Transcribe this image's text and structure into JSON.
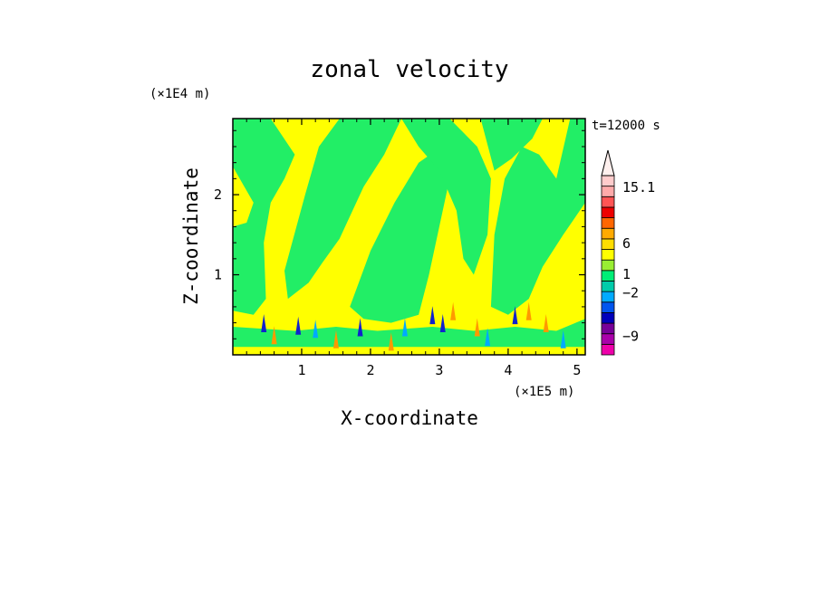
{
  "chart_data": {
    "type": "heatmap",
    "title": "zonal velocity",
    "time_label": "t=12000 s",
    "xlabel": "X-coordinate",
    "ylabel": "Z-coordinate",
    "x_scale_label": "(×1E5 m)",
    "y_scale_label": "(×1E4 m)",
    "xlim": [
      0,
      5.12
    ],
    "ylim": [
      0,
      2.95
    ],
    "x_ticks": [
      1,
      2,
      3,
      4,
      5
    ],
    "y_ticks": [
      1,
      2
    ],
    "colorbar": {
      "labels": [
        {
          "text": "15.1",
          "value": 15.1
        },
        {
          "text": "6",
          "value": 6
        },
        {
          "text": "1",
          "value": 1
        },
        {
          "text": "−2",
          "value": -2
        },
        {
          "text": "−9",
          "value": -9
        }
      ],
      "levels": [
        {
          "color": "#ee00aa"
        },
        {
          "color": "#aa00aa"
        },
        {
          "color": "#770099"
        },
        {
          "color": "#0000bb"
        },
        {
          "color": "#0055ee"
        },
        {
          "color": "#00aaff"
        },
        {
          "color": "#00ccaa"
        },
        {
          "color": "#00ee77"
        },
        {
          "color": "#99ee33"
        },
        {
          "color": "#ffff00"
        },
        {
          "color": "#ffdd00"
        },
        {
          "color": "#ffaa00"
        },
        {
          "color": "#ff6600"
        },
        {
          "color": "#ee0000"
        },
        {
          "color": "#ff5555"
        },
        {
          "color": "#ffaaaa"
        },
        {
          "color": "#ffcccc"
        }
      ]
    },
    "regions": {
      "background_color": "#ffff00",
      "green_color": "#22ee66",
      "green_bands": [
        {
          "polygon_xz": [
            [
              0,
              2.95
            ],
            [
              0.55,
              2.95
            ],
            [
              0.9,
              2.5
            ],
            [
              0.75,
              2.2
            ],
            [
              0.55,
              1.9
            ],
            [
              0.45,
              1.4
            ],
            [
              0.48,
              0.7
            ],
            [
              0.3,
              0.5
            ],
            [
              0,
              0.55
            ],
            [
              0,
              1.6
            ],
            [
              0.2,
              1.65
            ],
            [
              0.3,
              1.9
            ],
            [
              0,
              2.35
            ]
          ]
        },
        {
          "polygon_xz": [
            [
              0.75,
              1.05
            ],
            [
              1.05,
              2.0
            ],
            [
              1.25,
              2.6
            ],
            [
              1.55,
              2.95
            ],
            [
              2.45,
              2.95
            ],
            [
              2.2,
              2.5
            ],
            [
              1.9,
              2.1
            ],
            [
              1.55,
              1.45
            ],
            [
              1.3,
              1.15
            ],
            [
              1.1,
              0.9
            ],
            [
              0.8,
              0.7
            ]
          ]
        },
        {
          "polygon_xz": [
            [
              1.7,
              0.6
            ],
            [
              2.0,
              1.3
            ],
            [
              2.35,
              1.9
            ],
            [
              2.7,
              2.4
            ],
            [
              2.95,
              2.55
            ],
            [
              3.2,
              2.7
            ],
            [
              3.15,
              2.2
            ],
            [
              3.0,
              1.6
            ],
            [
              2.85,
              1.0
            ],
            [
              2.7,
              0.5
            ],
            [
              2.3,
              0.4
            ],
            [
              1.9,
              0.45
            ]
          ]
        },
        {
          "polygon_xz": [
            [
              2.45,
              2.95
            ],
            [
              3.15,
              2.95
            ],
            [
              3.55,
              2.6
            ],
            [
              3.75,
              2.2
            ],
            [
              3.7,
              1.5
            ],
            [
              3.5,
              1.0
            ],
            [
              3.35,
              1.2
            ],
            [
              3.25,
              1.8
            ],
            [
              3.0,
              2.3
            ],
            [
              2.7,
              2.6
            ]
          ]
        },
        {
          "polygon_xz": [
            [
              3.75,
              0.6
            ],
            [
              3.8,
              1.5
            ],
            [
              3.95,
              2.2
            ],
            [
              4.2,
              2.6
            ],
            [
              4.45,
              2.5
            ],
            [
              4.7,
              2.2
            ],
            [
              4.9,
              2.95
            ],
            [
              5.12,
              2.95
            ],
            [
              5.12,
              1.9
            ],
            [
              4.8,
              1.5
            ],
            [
              4.5,
              1.1
            ],
            [
              4.3,
              0.7
            ],
            [
              4.0,
              0.5
            ]
          ]
        },
        {
          "polygon_xz": [
            [
              3.6,
              2.95
            ],
            [
              4.5,
              2.95
            ],
            [
              4.35,
              2.7
            ],
            [
              4.05,
              2.45
            ],
            [
              3.8,
              2.3
            ]
          ]
        },
        {
          "polygon_xz": [
            [
              0.9,
              0.3
            ],
            [
              1.5,
              0.35
            ],
            [
              2.1,
              0.3
            ],
            [
              2.9,
              0.35
            ],
            [
              3.5,
              0.3
            ],
            [
              4.1,
              0.35
            ],
            [
              4.7,
              0.3
            ],
            [
              5.12,
              0.45
            ],
            [
              5.12,
              0.1
            ],
            [
              0,
              0.1
            ],
            [
              0,
              0.35
            ]
          ]
        }
      ],
      "features": [
        {
          "x": 0.45,
          "z": 0.35,
          "kind": "blue"
        },
        {
          "x": 0.95,
          "z": 0.32,
          "kind": "blue"
        },
        {
          "x": 1.2,
          "z": 0.28,
          "kind": "cyan"
        },
        {
          "x": 1.85,
          "z": 0.3,
          "kind": "blue"
        },
        {
          "x": 2.5,
          "z": 0.3,
          "kind": "cyan"
        },
        {
          "x": 2.9,
          "z": 0.45,
          "kind": "blue"
        },
        {
          "x": 3.2,
          "z": 0.5,
          "kind": "orange"
        },
        {
          "x": 3.05,
          "z": 0.35,
          "kind": "blue"
        },
        {
          "x": 3.55,
          "z": 0.3,
          "kind": "orange"
        },
        {
          "x": 4.1,
          "z": 0.45,
          "kind": "blue"
        },
        {
          "x": 4.3,
          "z": 0.5,
          "kind": "orange"
        },
        {
          "x": 4.55,
          "z": 0.35,
          "kind": "orange"
        },
        {
          "x": 0.6,
          "z": 0.2,
          "kind": "orange"
        },
        {
          "x": 1.5,
          "z": 0.15,
          "kind": "orange"
        },
        {
          "x": 2.3,
          "z": 0.12,
          "kind": "orange"
        },
        {
          "x": 3.7,
          "z": 0.18,
          "kind": "cyan"
        },
        {
          "x": 4.8,
          "z": 0.15,
          "kind": "cyan"
        }
      ]
    }
  }
}
